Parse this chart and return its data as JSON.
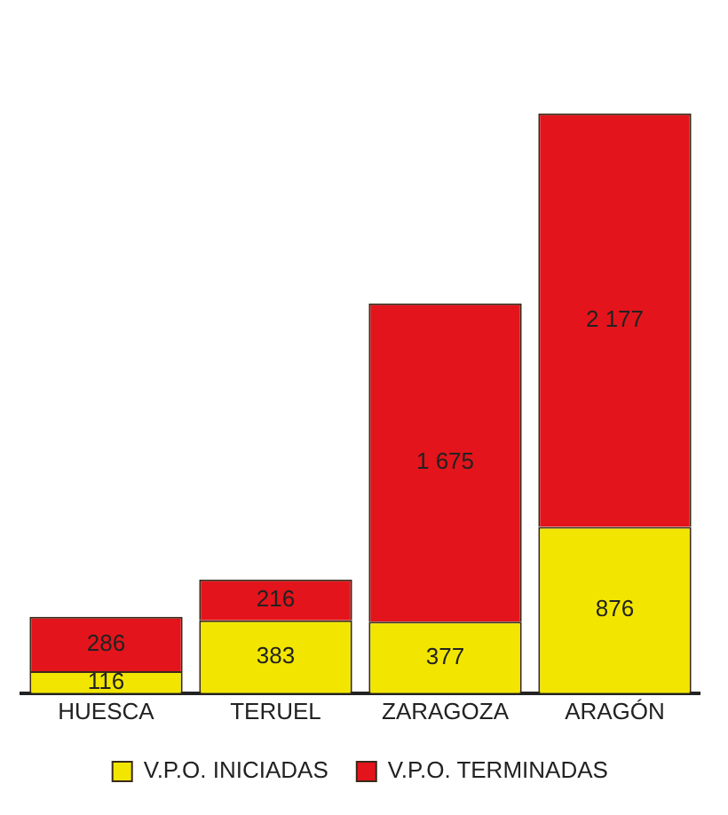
{
  "chart_data": {
    "type": "bar",
    "stacked": true,
    "categories": [
      "HUESCA",
      "TERUEL",
      "ZARAGOZA",
      "ARAGÓN"
    ],
    "series": [
      {
        "name": "V.P.O. INICIADAS",
        "color": "#f2e600",
        "values": [
          116,
          383,
          377,
          876
        ],
        "value_labels": [
          "116",
          "383",
          "377",
          "876"
        ]
      },
      {
        "name": "V.P.O. TERMINADAS",
        "color": "#e3141b",
        "values": [
          286,
          216,
          1675,
          2177
        ],
        "value_labels": [
          "286",
          "216",
          "1 675",
          "2 177"
        ]
      }
    ],
    "legend": "bottom",
    "grid": false
  }
}
